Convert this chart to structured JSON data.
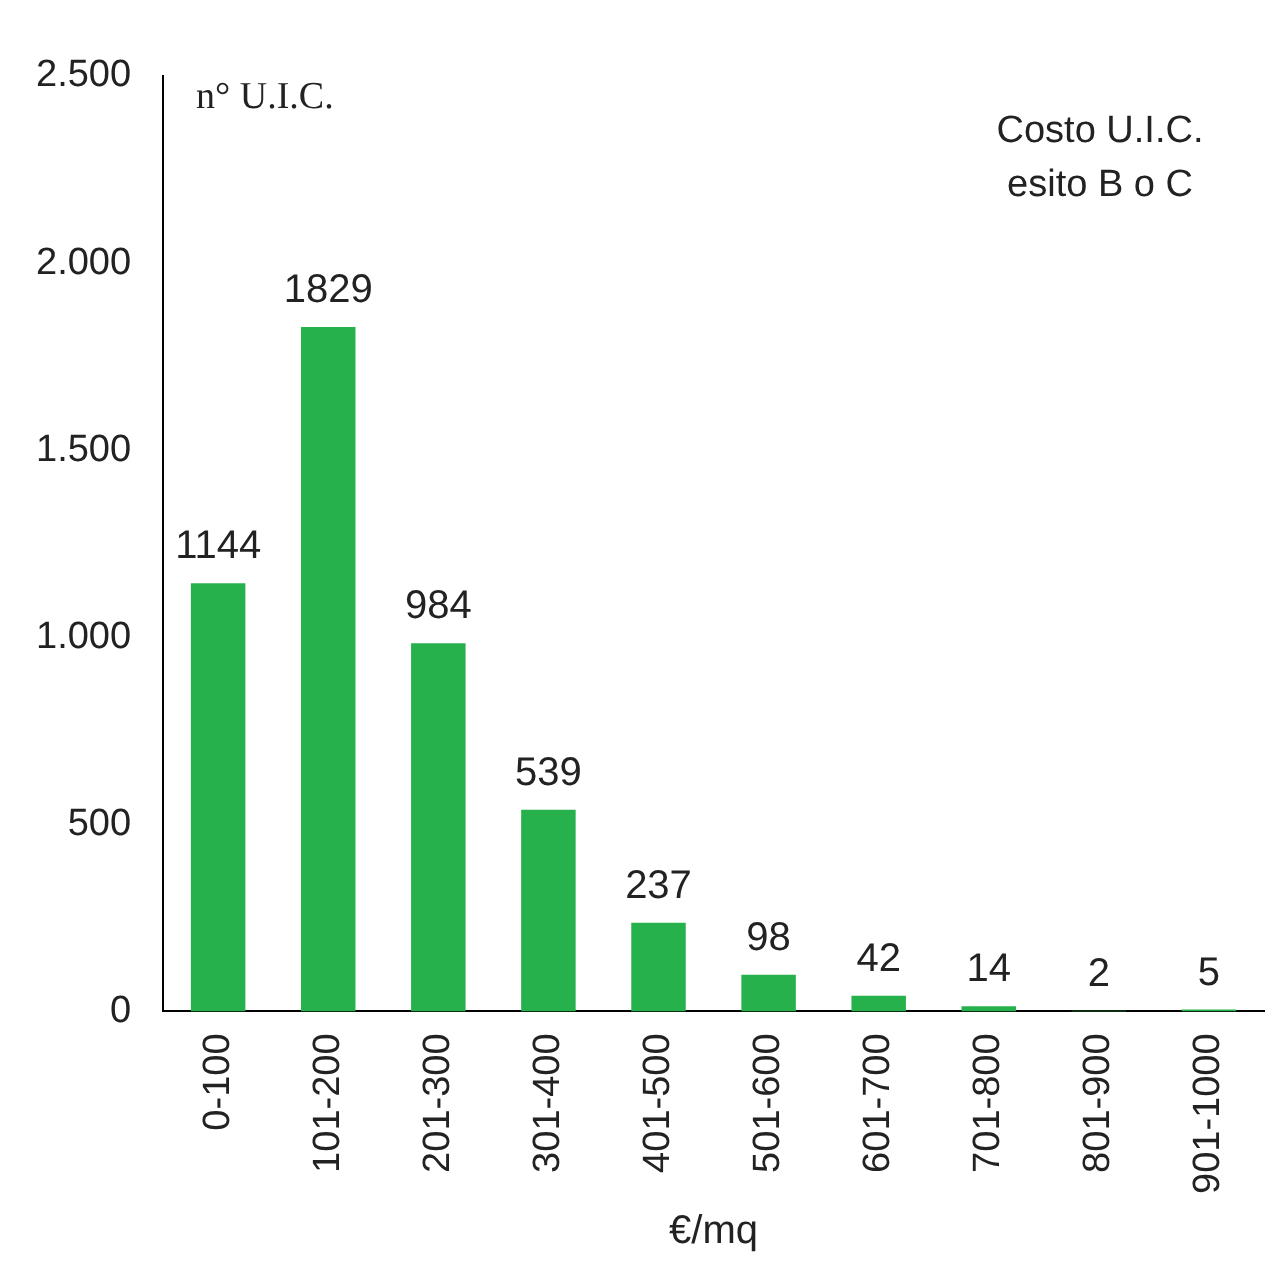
{
  "chart_data": {
    "type": "bar",
    "title": "Costo U.I.C. esito B o C",
    "ylabel": "n° U.I.C.",
    "xlabel": "€/mq",
    "categories": [
      "0-100",
      "101-200",
      "201-300",
      "301-400",
      "401-500",
      "501-600",
      "601-700",
      "701-800",
      "801-900",
      "901-1000"
    ],
    "values": [
      1144,
      1829,
      984,
      539,
      237,
      98,
      42,
      14,
      2,
      5
    ],
    "color": "#27b14c",
    "ylim": [
      0,
      2500
    ],
    "yticks": [
      0,
      500,
      {
        "value": 1000,
        "label": "1.000"
      },
      {
        "value": 1500,
        "label": "1.500"
      },
      {
        "value": 2000,
        "label": "2.000"
      },
      {
        "value": 2500,
        "label": "2.500"
      }
    ],
    "grid": false,
    "legend": false,
    "data_labels": true
  }
}
